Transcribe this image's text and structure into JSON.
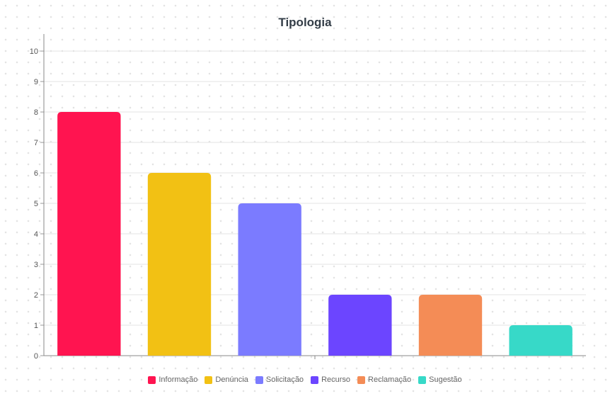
{
  "chart_data": {
    "type": "bar",
    "title": "Tipologia",
    "xlabel": "",
    "ylabel": "",
    "categories": [
      "Informação",
      "Denúncia",
      "Solicitação",
      "Recurso",
      "Reclamação",
      "Sugestão"
    ],
    "values": [
      8,
      6,
      5,
      2,
      2,
      1
    ],
    "colors": [
      "#ff1450",
      "#f2c114",
      "#7b7bff",
      "#6c45ff",
      "#f48c56",
      "#37d9c8"
    ],
    "ylim": [
      0,
      10
    ],
    "yticks": [
      "0",
      "1",
      "2",
      "3",
      "4",
      "5",
      "6",
      "7",
      "8",
      "9",
      "10"
    ],
    "grid": true,
    "legend_position": "bottom"
  }
}
